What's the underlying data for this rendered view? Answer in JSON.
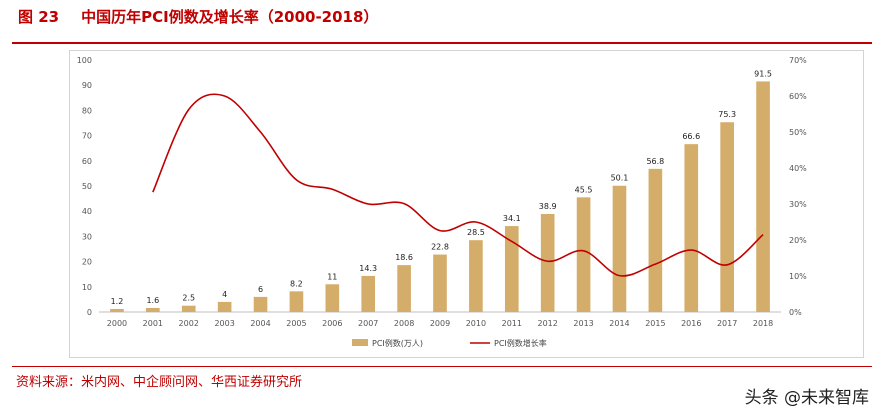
{
  "figure": {
    "number": "图 23",
    "title": "中国历年PCI例数及增长率（2000-2018）"
  },
  "source": "资料来源：米内网、中企顾问网、华西证券研究所",
  "watermark": "头条 @未来智库",
  "colors": {
    "bar": "#d4ad6a",
    "line": "#c00000",
    "accent": "#c00000"
  },
  "chart_data": {
    "type": "bar",
    "categories": [
      "2000",
      "2001",
      "2002",
      "2003",
      "2004",
      "2005",
      "2006",
      "2007",
      "2008",
      "2009",
      "2010",
      "2011",
      "2012",
      "2013",
      "2014",
      "2015",
      "2016",
      "2017",
      "2018"
    ],
    "series": [
      {
        "name": "PCI例数(万人)",
        "type": "bar",
        "axis": "left",
        "values": [
          1.2,
          1.6,
          2.5,
          4,
          6,
          8.2,
          11,
          14.3,
          18.6,
          22.8,
          28.5,
          34.1,
          38.9,
          45.5,
          50.1,
          56.8,
          66.6,
          75.3,
          91.5
        ],
        "labels": [
          "1.2",
          "1.6",
          "2.5",
          "4",
          "6",
          "8.2",
          "11",
          "14.3",
          "18.6",
          "22.8",
          "28.5",
          "34.1",
          "38.9",
          "45.5",
          "50.1",
          "56.8",
          "66.6",
          "75.3",
          "91.5"
        ]
      },
      {
        "name": "PCI例数增长率",
        "type": "line",
        "axis": "right",
        "values": [
          null,
          0.333,
          0.5625,
          0.6,
          0.5,
          0.367,
          0.341,
          0.3,
          0.301,
          0.226,
          0.25,
          0.196,
          0.141,
          0.17,
          0.101,
          0.133,
          0.172,
          0.131,
          0.215
        ]
      }
    ],
    "ylim_left": [
      0,
      100
    ],
    "yticks_left": [
      "0",
      "10",
      "20",
      "30",
      "40",
      "50",
      "60",
      "70",
      "80",
      "90",
      "100"
    ],
    "ylim_right": [
      0,
      0.7
    ],
    "yticks_right": [
      "0%",
      "10%",
      "20%",
      "30%",
      "40%",
      "50%",
      "60%",
      "70%"
    ],
    "legend_position": "bottom-center",
    "grid": false
  }
}
